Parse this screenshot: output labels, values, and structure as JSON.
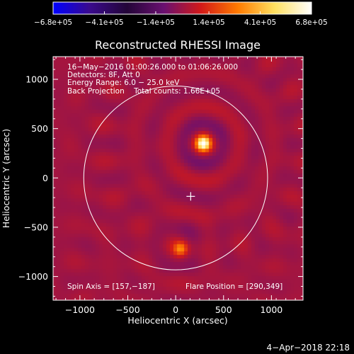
{
  "chart_data": {
    "type": "heatmap",
    "title": "Reconstructed RHESSI Image",
    "xlabel": "Heliocentric X (arcsec)",
    "ylabel": "Heliocentric Y (arcsec)",
    "xlim": [
      -1280,
      1330
    ],
    "ylim": [
      -1240,
      1230
    ],
    "xticks": [
      -1000,
      -500,
      0,
      500,
      1000
    ],
    "xtick_labels": [
      "−1000",
      "−500",
      "0",
      "500",
      "1000"
    ],
    "yticks": [
      -1000,
      -500,
      0,
      500,
      1000
    ],
    "ytick_labels": [
      "−1000",
      "−500",
      "0",
      "500",
      "1000"
    ],
    "colorbar": {
      "range": [
        -680000,
        680000
      ],
      "tick_values": [
        -680000,
        -410000,
        -140000,
        140000,
        410000,
        680000
      ],
      "tick_labels": [
        "−6.8e+05",
        "−4.1e+05",
        "−1.4e+05",
        "1.4e+05",
        "4.1e+05",
        "6.8e+05"
      ]
    },
    "annotations": [
      "16−May−2016 01:00:26.000 to 01:06:26.000",
      "Detectors: 8F, Att 0",
      "Energy Range: 6.0 − 25.0 keV",
      "Back Projection    Total counts: 1.66E+05"
    ],
    "spin_axis_label": "Spin Axis = [157,−187]",
    "flare_position_label": "Flare Position = [290,349]",
    "spin_axis": [
      157,
      -187
    ],
    "flare_position": [
      290,
      349
    ],
    "solar_limb_radius": 960,
    "sources": [
      {
        "x": 290,
        "y": 349,
        "peak": 680000
      },
      {
        "x": 50,
        "y": -720,
        "peak": 300000
      }
    ],
    "grid": false
  },
  "footer": {
    "timestamp": "4−Apr−2018 22:18"
  },
  "colors": {
    "background": "#000000",
    "foreground": "#ffffff",
    "colormap": [
      "#0000ff",
      "#3a0a8c",
      "#230538",
      "#6a1070",
      "#d21919",
      "#ff7a00",
      "#ffe060",
      "#ffffff"
    ]
  }
}
